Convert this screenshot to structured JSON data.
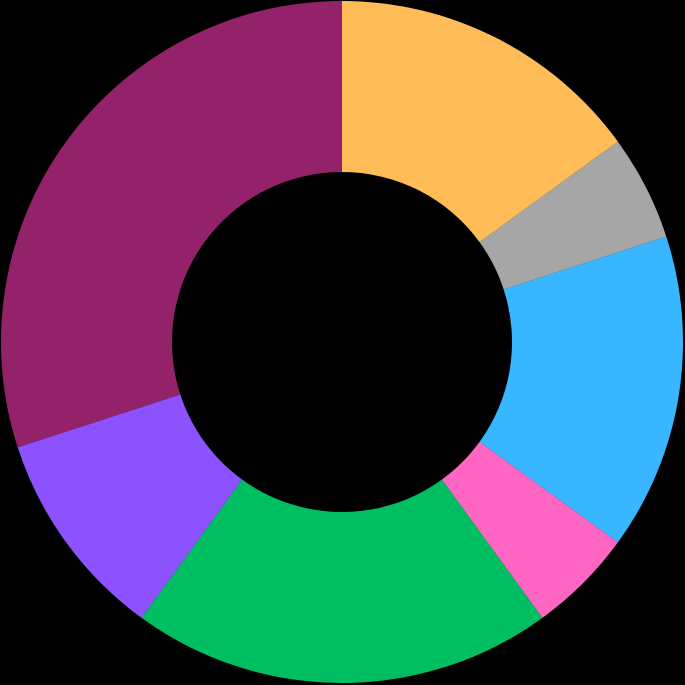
{
  "chart_data": {
    "type": "pie",
    "variant": "donut",
    "title": "",
    "legend": "none",
    "start_angle_deg": 0,
    "direction": "clockwise",
    "background": "#000000",
    "slices": [
      {
        "value": 15,
        "color": "#FFBC57"
      },
      {
        "value": 5,
        "color": "#A6A6A6"
      },
      {
        "value": 15,
        "color": "#38B6FF"
      },
      {
        "value": 5,
        "color": "#FF66C4"
      },
      {
        "value": 20,
        "color": "#00BF63"
      },
      {
        "value": 10,
        "color": "#8C52FF"
      },
      {
        "value": 30,
        "color": "#93226B"
      }
    ]
  }
}
